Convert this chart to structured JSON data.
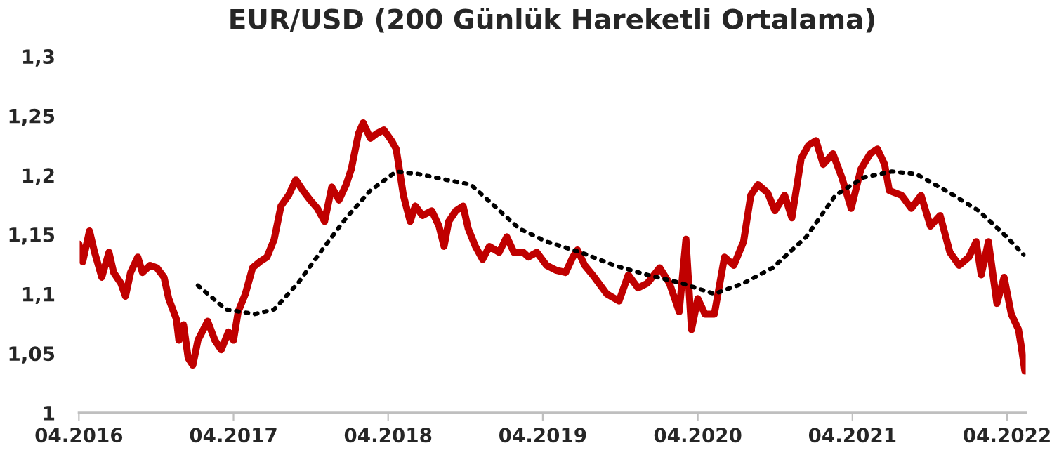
{
  "chart_data": {
    "type": "line",
    "title": "EUR/USD (200 Günlük Hareketli Ortalama)",
    "ylim": [
      1,
      1.3
    ],
    "yticks": [
      1,
      {
        "value": 1.05,
        "label": "1,05"
      },
      {
        "value": 1.1,
        "label": "1,1"
      },
      {
        "value": 1.15,
        "label": "1,15"
      },
      {
        "value": 1.2,
        "label": "1,2"
      },
      {
        "value": 1.25,
        "label": "1,25"
      },
      {
        "value": 1.3,
        "label": "1,3"
      }
    ],
    "xlim": [
      "2016-04-01",
      "2022-05-15"
    ],
    "xticks": [
      {
        "value": "2016-04-01",
        "label": "04.2016"
      },
      {
        "value": "2017-04-01",
        "label": "04.2017"
      },
      {
        "value": "2018-04-01",
        "label": "04.2018"
      },
      {
        "value": "2019-04-01",
        "label": "04.2019"
      },
      {
        "value": "2020-04-01",
        "label": "04.2020"
      },
      {
        "value": "2021-04-01",
        "label": "04.2021"
      },
      {
        "value": "2022-04-01",
        "label": "04.2022"
      }
    ],
    "grid": false,
    "legend": false,
    "marker": "none",
    "series": [
      {
        "color": "#c00000",
        "line_style": "solid",
        "x": [
          "2016-04-01",
          "2016-04-10",
          "2016-04-26",
          "2016-05-08",
          "2016-05-25",
          "2016-06-11",
          "2016-06-22",
          "2016-07-09",
          "2016-07-20",
          "2016-08-01",
          "2016-08-18",
          "2016-08-29",
          "2016-09-16",
          "2016-10-02",
          "2016-10-19",
          "2016-10-30",
          "2016-11-17",
          "2016-11-23",
          "2016-12-04",
          "2016-12-15",
          "2016-12-26",
          "2017-01-07",
          "2017-01-30",
          "2017-02-16",
          "2017-03-03",
          "2017-03-20",
          "2017-04-01",
          "2017-04-12",
          "2017-04-29",
          "2017-05-16",
          "2017-06-02",
          "2017-06-19",
          "2017-07-06",
          "2017-07-22",
          "2017-08-09",
          "2017-08-26",
          "2017-09-12",
          "2017-09-29",
          "2017-10-16",
          "2017-11-02",
          "2017-11-19",
          "2017-12-06",
          "2017-12-23",
          "2018-01-04",
          "2018-01-21",
          "2018-02-01",
          "2018-02-18",
          "2018-03-05",
          "2018-03-22",
          "2018-04-09",
          "2018-04-20",
          "2018-05-07",
          "2018-05-23",
          "2018-06-04",
          "2018-06-21",
          "2018-07-13",
          "2018-07-30",
          "2018-08-11",
          "2018-08-22",
          "2018-09-08",
          "2018-09-25",
          "2018-10-07",
          "2018-10-24",
          "2018-11-10",
          "2018-11-26",
          "2018-12-19",
          "2019-01-06",
          "2019-01-23",
          "2019-02-14",
          "2019-02-26",
          "2019-03-18",
          "2019-04-10",
          "2019-05-02",
          "2019-05-25",
          "2019-06-11",
          "2019-06-22",
          "2019-07-09",
          "2019-08-01",
          "2019-08-30",
          "2019-09-28",
          "2019-10-20",
          "2019-11-12",
          "2019-12-04",
          "2020-01-02",
          "2020-01-25",
          "2020-02-17",
          "2020-03-04",
          "2020-03-17",
          "2020-04-01",
          "2020-04-18",
          "2020-05-10",
          "2020-06-03",
          "2020-06-25",
          "2020-07-18",
          "2020-08-04",
          "2020-08-21",
          "2020-09-13",
          "2020-09-30",
          "2020-10-23",
          "2020-11-09",
          "2020-12-01",
          "2020-12-18",
          "2021-01-05",
          "2021-01-22",
          "2021-02-14",
          "2021-03-07",
          "2021-03-29",
          "2021-04-21",
          "2021-05-13",
          "2021-05-30",
          "2021-06-16",
          "2021-06-27",
          "2021-07-26",
          "2021-08-18",
          "2021-09-10",
          "2021-10-02",
          "2021-10-25",
          "2021-11-17",
          "2021-12-09",
          "2022-01-01",
          "2022-01-18",
          "2022-01-30",
          "2022-02-16",
          "2022-03-08",
          "2022-03-25",
          "2022-04-11",
          "2022-04-28",
          "2022-05-04",
          "2022-05-13"
        ],
        "values": [
          1.142,
          1.127,
          1.153,
          1.135,
          1.114,
          1.135,
          1.118,
          1.109,
          1.098,
          1.118,
          1.131,
          1.118,
          1.124,
          1.122,
          1.114,
          1.096,
          1.079,
          1.061,
          1.074,
          1.046,
          1.04,
          1.061,
          1.077,
          1.061,
          1.053,
          1.068,
          1.061,
          1.085,
          1.1,
          1.122,
          1.127,
          1.131,
          1.146,
          1.174,
          1.183,
          1.196,
          1.187,
          1.179,
          1.172,
          1.161,
          1.19,
          1.179,
          1.192,
          1.205,
          1.235,
          1.244,
          1.231,
          1.235,
          1.238,
          1.229,
          1.222,
          1.183,
          1.161,
          1.174,
          1.166,
          1.17,
          1.157,
          1.14,
          1.161,
          1.17,
          1.174,
          1.155,
          1.14,
          1.129,
          1.14,
          1.135,
          1.148,
          1.135,
          1.135,
          1.131,
          1.135,
          1.124,
          1.12,
          1.118,
          1.131,
          1.137,
          1.124,
          1.114,
          1.1,
          1.094,
          1.116,
          1.105,
          1.109,
          1.122,
          1.109,
          1.085,
          1.146,
          1.07,
          1.096,
          1.083,
          1.083,
          1.131,
          1.124,
          1.144,
          1.183,
          1.192,
          1.185,
          1.17,
          1.183,
          1.164,
          1.214,
          1.225,
          1.229,
          1.209,
          1.218,
          1.198,
          1.172,
          1.205,
          1.218,
          1.222,
          1.209,
          1.187,
          1.183,
          1.172,
          1.183,
          1.157,
          1.166,
          1.135,
          1.124,
          1.131,
          1.144,
          1.116,
          1.144,
          1.092,
          1.114,
          1.083,
          1.07,
          1.057,
          1.035
        ]
      },
      {
        "color": "#000000",
        "line_style": "dotted",
        "x": [
          "2017-01-07",
          "2017-03-14",
          "2017-05-21",
          "2017-07-06",
          "2017-08-31",
          "2017-10-27",
          "2017-12-23",
          "2018-02-18",
          "2018-04-20",
          "2018-06-10",
          "2018-08-17",
          "2018-10-13",
          "2018-12-08",
          "2019-02-04",
          "2019-04-10",
          "2019-06-29",
          "2019-09-17",
          "2019-12-04",
          "2020-02-23",
          "2020-05-10",
          "2020-07-18",
          "2020-09-25",
          "2020-12-13",
          "2021-02-20",
          "2021-04-27",
          "2021-07-03",
          "2021-08-29",
          "2021-11-17",
          "2022-01-24",
          "2022-03-31",
          "2022-05-10"
        ],
        "values": [
          1.107,
          1.087,
          1.083,
          1.087,
          1.109,
          1.137,
          1.164,
          1.187,
          1.203,
          1.201,
          1.196,
          1.192,
          1.174,
          1.155,
          1.144,
          1.135,
          1.124,
          1.116,
          1.109,
          1.1,
          1.109,
          1.122,
          1.148,
          1.183,
          1.198,
          1.203,
          1.201,
          1.185,
          1.17,
          1.148,
          1.133
        ]
      }
    ]
  }
}
